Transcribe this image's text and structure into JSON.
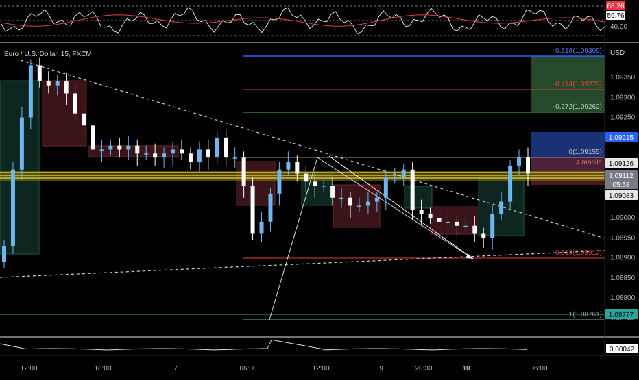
{
  "chart_header": {
    "symbol": "Euro / U.S. Dollar, 15, FXCM",
    "currency": "USD"
  },
  "rsi_panel": {
    "levels": [
      "68.26",
      "59.76",
      "40.00"
    ],
    "badge_color": "#f23645",
    "badge2_color": "#ffffff"
  },
  "bottom_panel": {
    "value": "0.00042"
  },
  "price_axis": {
    "ticks": [
      "1.09350",
      "1.09300",
      "1.09250",
      "1.09200",
      "1.09000",
      "1.08950",
      "1.08900",
      "1.08850",
      "1.08800",
      "1.08750"
    ],
    "badges": [
      {
        "text": "1.09215",
        "bg": "#2962ff",
        "fg": "#ffffff"
      },
      {
        "text": "1.09126",
        "bg": "#e6e6e6",
        "fg": "#000000"
      },
      {
        "text": "1.09112",
        "bg": "#787b86",
        "fg": "#ffffff"
      },
      {
        "text": "05:58",
        "bg": "#787b86",
        "fg": "#ffffff"
      },
      {
        "text": "1.09083",
        "bg": "#e6e6e6",
        "fg": "#000000"
      },
      {
        "text": "1.08777",
        "bg": "#26a69a",
        "fg": "#000000"
      }
    ]
  },
  "time_axis": {
    "labels": [
      "12:00",
      "18:00",
      "7",
      "06:00",
      "12:00",
      "9",
      "20:30",
      "10",
      "06:00"
    ]
  },
  "fib_labels": {
    "neg618": "-0.618(1.09309)",
    "neg414": "-0.414(1.09279)",
    "neg272": "-0.272(1.09262)",
    "zero": "0(1.09155)",
    "sl": "4 mobile",
    "f618": "0.618(1.08912)",
    "one": "1(1.08761)"
  },
  "chart_data": {
    "type": "candlestick",
    "symbol": "Euro / U.S. Dollar, 15, FXCM",
    "ylim": [
      1.0872,
      1.0942
    ],
    "price_ticks": [
      1.0935,
      1.093,
      1.0925,
      1.092,
      1.09,
      1.0895,
      1.089,
      1.0885,
      1.088,
      1.0875
    ],
    "time_labels": [
      "12:00",
      "18:00",
      "7",
      "06:00",
      "12:00",
      "9",
      "20:30",
      "10",
      "06:00"
    ],
    "fib_levels": [
      {
        "label": "-0.618(1.09309)",
        "value": 1.09309
      },
      {
        "label": "-0.414(1.09279)",
        "value": 1.09279
      },
      {
        "label": "-0.272(1.09262)",
        "value": 1.09262
      },
      {
        "label": "0(1.09155)",
        "value": 1.09155
      },
      {
        "label": "0.618(1.08912)",
        "value": 1.08912
      },
      {
        "label": "1(1.08761)",
        "value": 1.08761
      }
    ],
    "current_price": 1.09112,
    "close_series": [
      1.0893,
      1.0912,
      1.0925,
      1.0938,
      1.0934,
      1.0933,
      1.0934,
      1.0931,
      1.0926,
      1.0923,
      1.0917,
      1.0917,
      1.0918,
      1.0917,
      1.0918,
      1.0916,
      1.0916,
      1.0915,
      1.0916,
      1.0917,
      1.0916,
      1.0914,
      1.0917,
      1.0915,
      1.092,
      1.0915,
      1.0915,
      1.0908,
      1.0896,
      1.0899,
      1.0906,
      1.0912,
      1.0914,
      1.0911,
      1.0909,
      1.0908,
      1.0908,
      1.0905,
      1.0905,
      1.0903,
      1.0903,
      1.0904,
      1.0905,
      1.091,
      1.091,
      1.0912,
      1.0902,
      1.0901,
      1.09,
      1.0899,
      1.0899,
      1.0898,
      1.0898,
      1.0896,
      1.0895,
      1.0901,
      1.0904,
      1.0913,
      1.0915,
      1.0911
    ]
  }
}
